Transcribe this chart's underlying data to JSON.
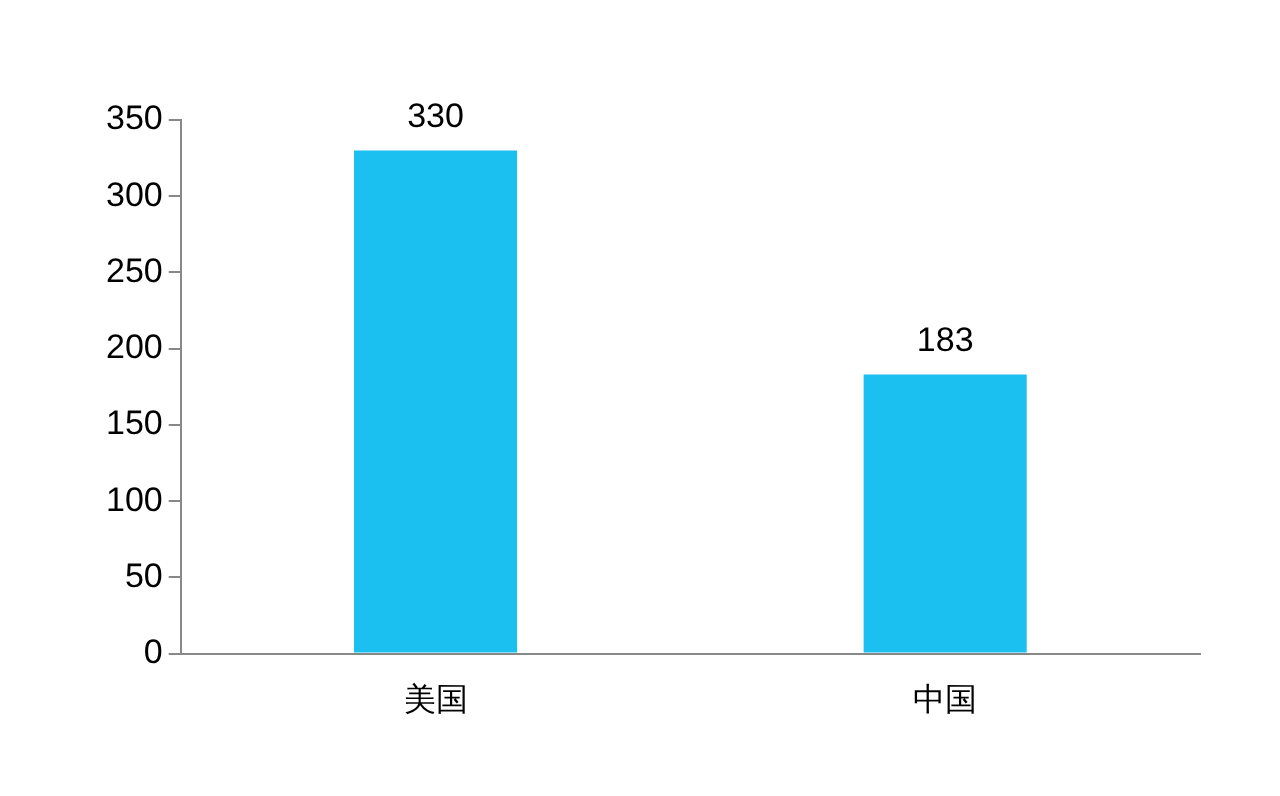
{
  "chart_data": {
    "type": "bar",
    "categories": [
      "美国",
      "中国"
    ],
    "values": [
      330,
      183
    ],
    "color": "#1cc0f0",
    "ylim": [
      0,
      350
    ],
    "yticks": [
      0,
      50,
      100,
      150,
      200,
      250,
      300,
      350
    ],
    "grid": false,
    "legend": false,
    "data_labels": true
  }
}
